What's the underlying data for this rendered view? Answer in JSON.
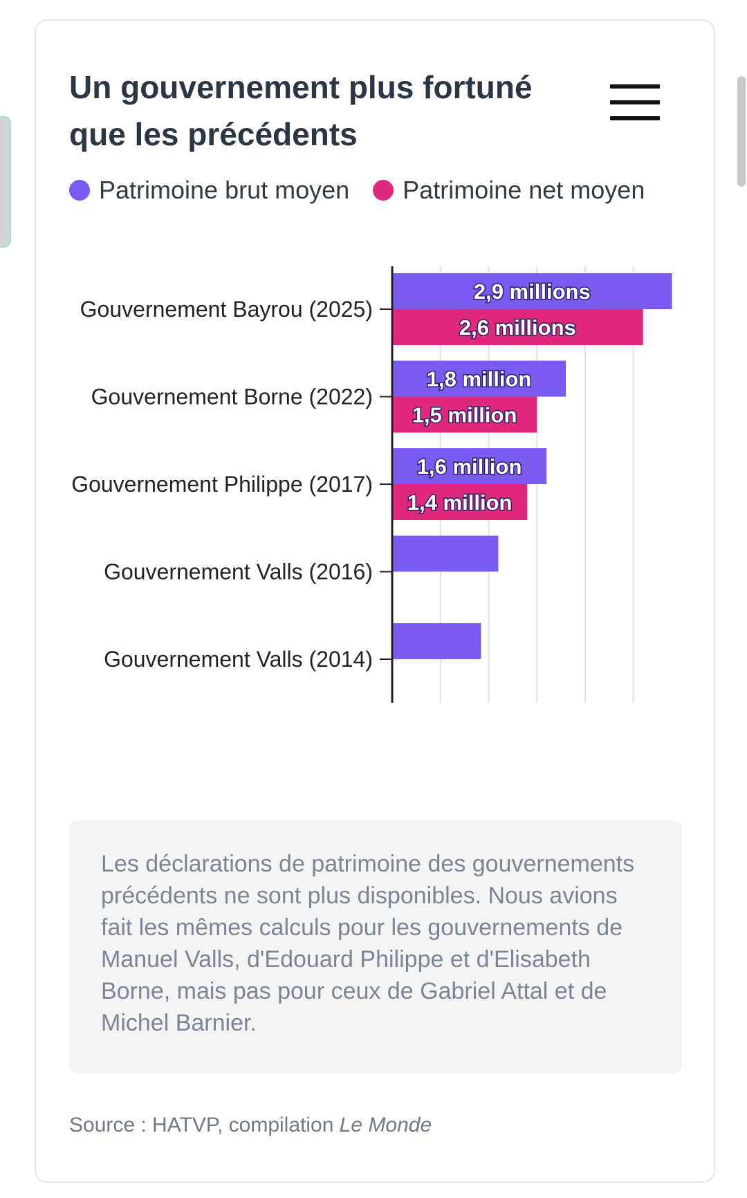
{
  "card": {
    "title": "Un gouvernement plus fortuné que les précédents",
    "note": "Les déclarations de patrimoine des gouvernements précédents ne sont plus disponibles. Nous avions fait les mêmes calculs pour les gouvernements de Manuel Valls, d'Edouard Philippe et d'Elisabeth Borne, mais pas pour ceux de Gabriel Attal et de Michel Barnier.",
    "source_prefix": "Source : HATVP, compilation ",
    "source_publication": "Le Monde",
    "menu_icon": "hamburger-menu-icon"
  },
  "colors": {
    "brut": "#7a5af0",
    "net": "#e0297c"
  },
  "chart_data": {
    "type": "bar",
    "orientation": "horizontal",
    "title": "Un gouvernement plus fortuné que les précédents",
    "categories": [
      "Gouvernement Bayrou (2025)",
      "Gouvernement Borne (2022)",
      "Gouvernement Philippe (2017)",
      "Gouvernement Valls (2016)",
      "Gouvernement Valls (2014)"
    ],
    "series": [
      {
        "name": "Patrimoine brut moyen",
        "color": "#7a5af0",
        "values": [
          2.9,
          1.8,
          1.6,
          1.1,
          0.92
        ],
        "labels": [
          "2,9 millions",
          "1,8 million",
          "1,6 million",
          "",
          ""
        ]
      },
      {
        "name": "Patrimoine net moyen",
        "color": "#e0297c",
        "values": [
          2.6,
          1.5,
          1.4,
          null,
          null
        ],
        "labels": [
          "2,6 millions",
          "1,5 million",
          "1,4 million",
          "",
          ""
        ]
      }
    ],
    "unit": "millions d'euros",
    "xlim": [
      0,
      3.0
    ],
    "gridlines": [
      0.5,
      1.0,
      1.5,
      2.0,
      2.5
    ],
    "grid": true,
    "legend_position": "top"
  }
}
